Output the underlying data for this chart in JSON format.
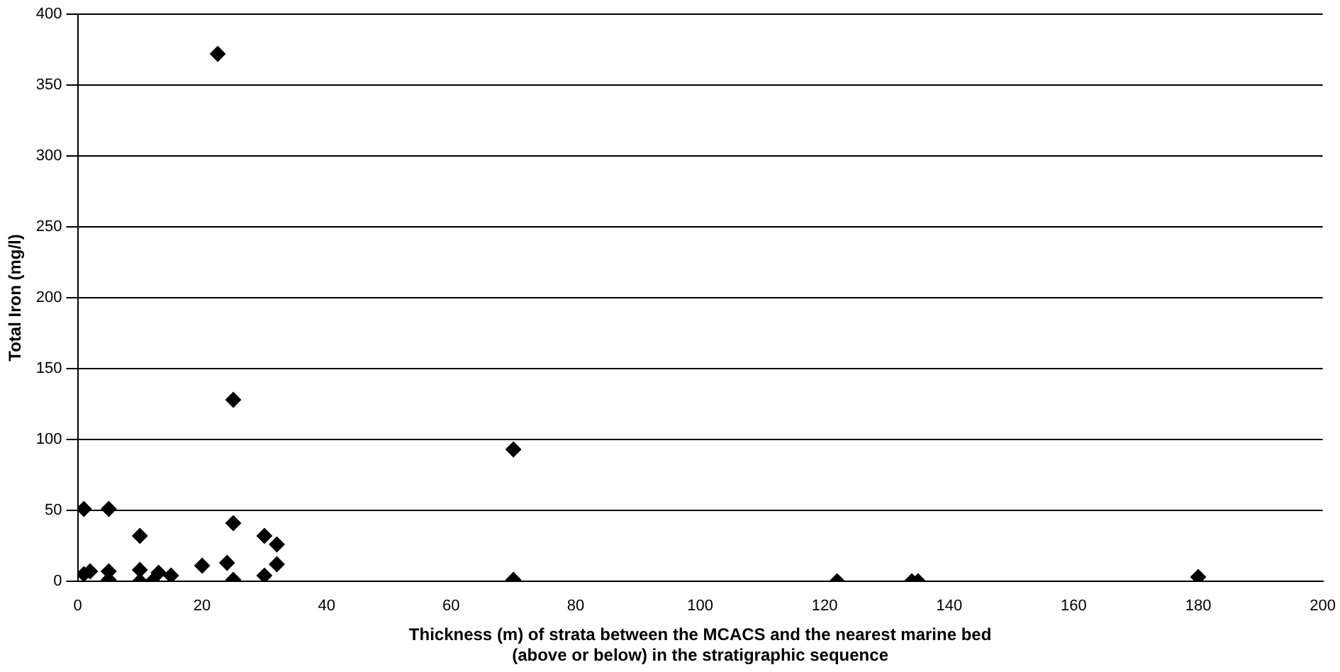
{
  "chart_data": {
    "type": "scatter",
    "xlabel": "Thickness (m) of strata between the MCACS and the nearest marine bed\n(above or below) in the stratigraphic sequence",
    "ylabel": "Total Iron (mg/l)",
    "x": [
      1,
      5,
      1,
      2,
      5,
      5,
      10,
      10,
      10,
      12,
      13,
      15,
      20,
      24,
      25,
      25,
      30,
      30,
      32,
      32,
      22.5,
      25,
      70,
      70,
      122,
      134,
      135,
      180
    ],
    "values": [
      51,
      51,
      5,
      7,
      7,
      1,
      32,
      8,
      0,
      0,
      6,
      4,
      11,
      13,
      41,
      1,
      32,
      4,
      26,
      12,
      372,
      128,
      93,
      1,
      0,
      0,
      0,
      3
    ],
    "color": "#000000",
    "marker": "diamond",
    "xlim": [
      0,
      200
    ],
    "xticks": [
      0,
      20,
      40,
      60,
      80,
      100,
      120,
      140,
      160,
      180,
      200
    ],
    "ylim": [
      0,
      400
    ],
    "yticks": [
      0,
      50,
      100,
      150,
      200,
      250,
      300,
      350,
      400
    ],
    "grid": "y",
    "legend": false
  }
}
